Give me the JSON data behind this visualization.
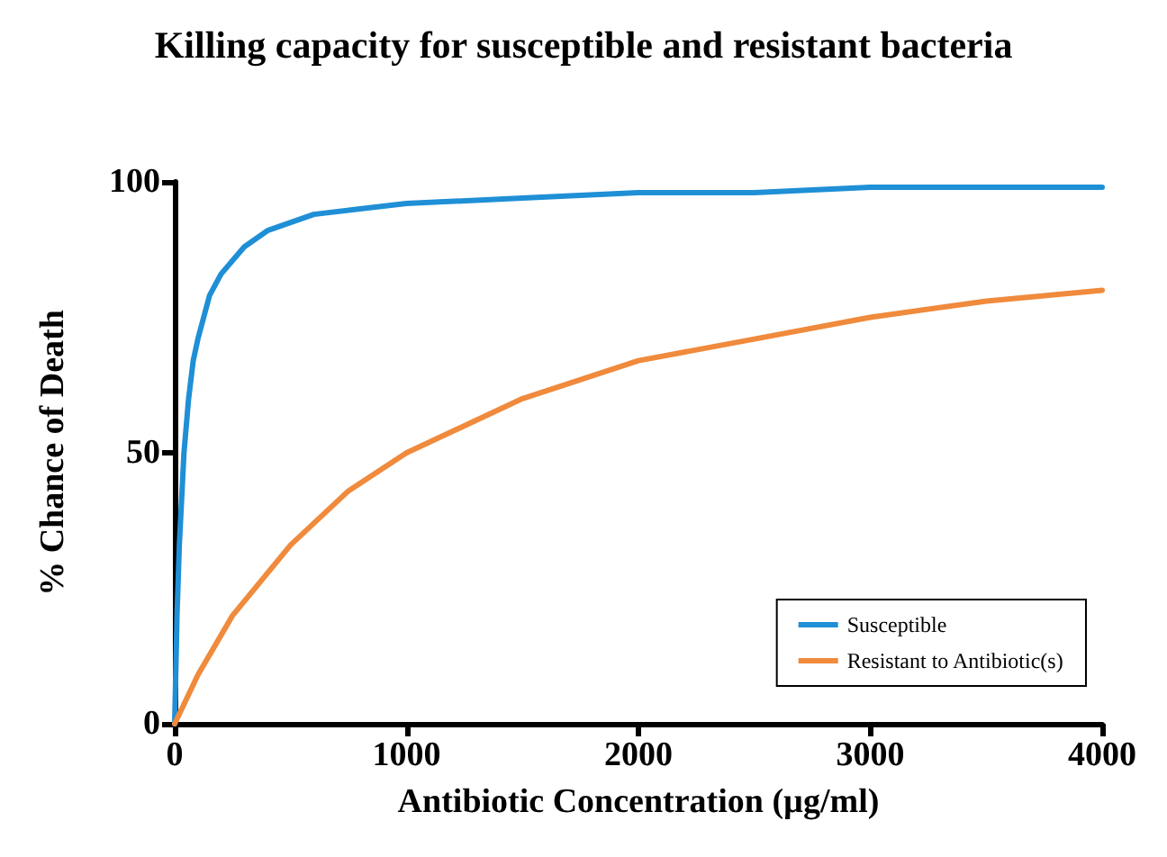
{
  "chart_data": {
    "type": "line",
    "title": "Killing capacity for susceptible and resistant bacteria",
    "xlabel": "Antibiotic Concentration (µg/ml)",
    "ylabel": "% Chance of Death",
    "series": [
      {
        "name": "Susceptible",
        "color": "#1f8fd6",
        "x": [
          0,
          10,
          20,
          40,
          60,
          80,
          100,
          150,
          200,
          300,
          400,
          600,
          800,
          1000,
          1500,
          2000,
          2500,
          3000,
          3500,
          4000
        ],
        "values": [
          0,
          20,
          33,
          50,
          60,
          67,
          71,
          79,
          83,
          88,
          91,
          94,
          95,
          96,
          97,
          98,
          98,
          99,
          99,
          99
        ]
      },
      {
        "name": "Resistant to Antibiotic(s)",
        "color": "#f08a3c",
        "x": [
          0,
          100,
          250,
          500,
          750,
          1000,
          1500,
          2000,
          2500,
          3000,
          3500,
          4000
        ],
        "values": [
          0,
          9,
          20,
          33,
          43,
          50,
          60,
          67,
          71,
          75,
          78,
          80
        ]
      }
    ],
    "xlim": [
      0,
      4000
    ],
    "xticks": [
      0,
      1000,
      2000,
      3000,
      4000
    ],
    "ylim": [
      0,
      100
    ],
    "yticks": [
      0,
      50,
      100
    ],
    "grid": false,
    "legend": "bottom right",
    "marker": "none",
    "line_style": "solid"
  }
}
